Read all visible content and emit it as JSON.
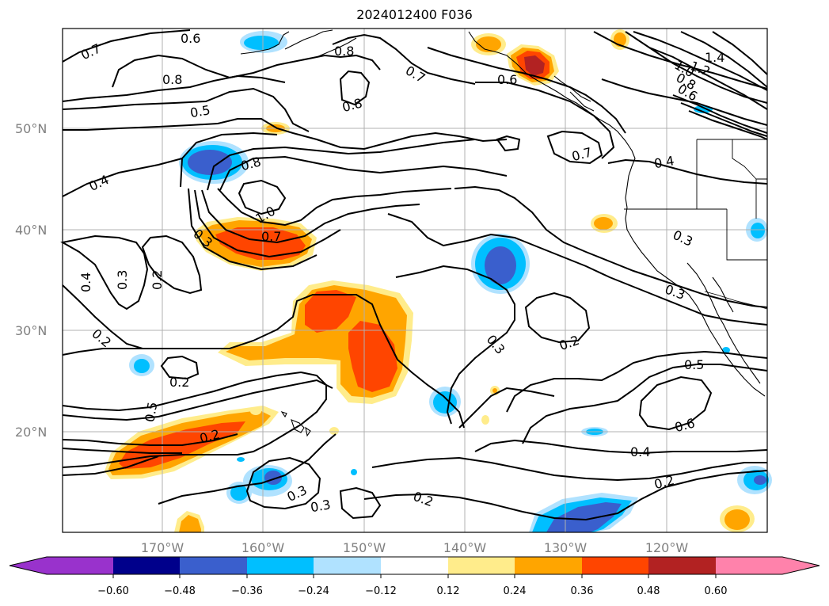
{
  "title": "2024012400 F036",
  "map": {
    "lat_labels": [
      "50°N",
      "40°N",
      "30°N",
      "20°N"
    ],
    "lon_labels": [
      "170°W",
      "160°W",
      "150°W",
      "140°W",
      "130°W",
      "120°W"
    ],
    "contour_labels": [
      "0.6",
      "0.7",
      "0.8",
      "0.8",
      "0.8",
      "0.7",
      "0.6",
      "0.5",
      "1.4",
      "1.2",
      "1.0",
      "0.8",
      "0.6",
      "0.8",
      "0.7",
      "0.4",
      "0.4",
      "1.0",
      "0.7",
      "0.3",
      "0.3",
      "0.4",
      "0.3",
      "0.2",
      "0.2",
      "0.2",
      "0.3",
      "0.3",
      "0.2",
      "0.5",
      "0.5",
      "0.6",
      "0.4",
      "0.2",
      "0.2",
      "0.3",
      "0.3",
      "0.2"
    ]
  },
  "colorbar": {
    "tick_labels": [
      "−0.60",
      "−0.48",
      "−0.36",
      "−0.24",
      "−0.12",
      "0.12",
      "0.24",
      "0.36",
      "0.48",
      "0.60"
    ],
    "colors": [
      "#9932cc",
      "#00008b",
      "#3a5fcd",
      "#00bfff",
      "#b0e2ff",
      "#ffffff",
      "#ffec8b",
      "#ffa500",
      "#ff4500",
      "#b22222",
      "#ff82ab"
    ]
  }
}
